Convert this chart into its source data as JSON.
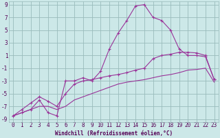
{
  "xlabel": "Windchill (Refroidissement éolien,°C)",
  "x": [
    0,
    1,
    2,
    3,
    4,
    5,
    6,
    7,
    8,
    9,
    10,
    11,
    12,
    13,
    14,
    15,
    16,
    17,
    18,
    19,
    20,
    21,
    22,
    23
  ],
  "y_zigzag": [
    -8.5,
    -8,
    -7.5,
    -6,
    -8,
    -8.5,
    -3,
    -3,
    -2.5,
    -3,
    -1.5,
    2,
    4.5,
    6.5,
    8.8,
    9,
    7,
    6.5,
    5,
    2,
    1,
    1,
    0.8,
    -2.8
  ],
  "y_upper": [
    -8.5,
    -7.5,
    -6.5,
    -5.5,
    -6.2,
    -7,
    -5,
    -3.5,
    -3,
    -2.8,
    -2.5,
    -2.2,
    -2,
    -1.7,
    -1.3,
    -1,
    0.5,
    1,
    1.2,
    1.5,
    1.5,
    1.4,
    1.0,
    -2.8
  ],
  "y_lower": [
    -8.5,
    -8,
    -7.5,
    -7,
    -7,
    -7.5,
    -7,
    -6,
    -5.5,
    -5,
    -4.5,
    -4,
    -3.5,
    -3.2,
    -3,
    -2.8,
    -2.5,
    -2.2,
    -2,
    -1.7,
    -1.3,
    -1.2,
    -1,
    -3.2
  ],
  "bg_color": "#cce8e8",
  "line_color": "#993399",
  "grid_color": "#99bbbb",
  "xlim": [
    -0.5,
    23.5
  ],
  "ylim": [
    -9.5,
    9.5
  ],
  "yticks": [
    -9,
    -7,
    -5,
    -3,
    -1,
    1,
    3,
    5,
    7,
    9
  ],
  "xticks": [
    0,
    1,
    2,
    3,
    4,
    5,
    6,
    7,
    8,
    9,
    10,
    11,
    12,
    13,
    14,
    15,
    16,
    17,
    18,
    19,
    20,
    21,
    22,
    23
  ],
  "tick_fontsize": 5.5,
  "xlabel_fontsize": 5.5
}
